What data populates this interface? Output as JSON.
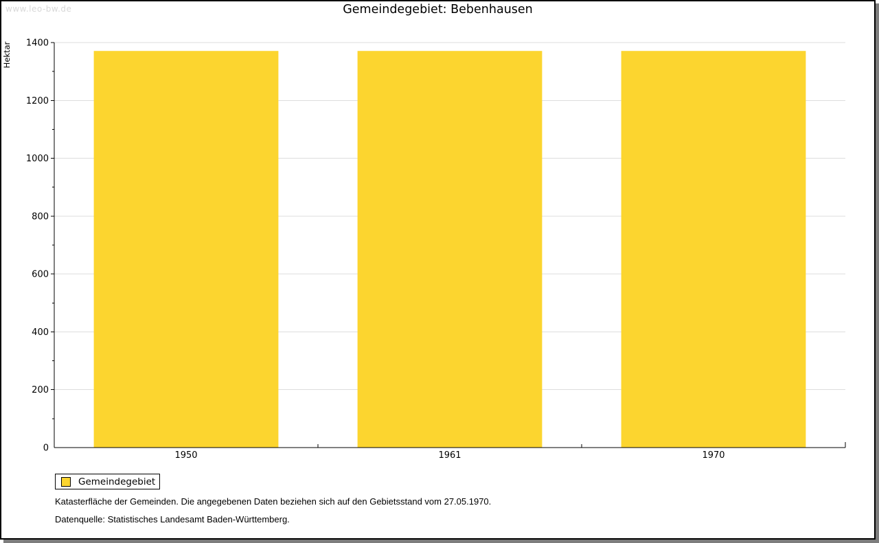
{
  "watermark": "www.leo-bw.de",
  "title": "Gemeindegebiet: Bebenhausen",
  "chart_data": {
    "type": "bar",
    "title": "Gemeindegebiet: Bebenhausen",
    "categories": [
      "1950",
      "1961",
      "1970"
    ],
    "values": [
      1371,
      1371,
      1371
    ],
    "series_name": "Gemeindegebiet",
    "xlabel": "",
    "ylabel": "Hektar",
    "ylim": [
      0,
      1400
    ],
    "ytick_step": 200,
    "minor_tick_step": 100,
    "grid": true,
    "legend_position": "bottom-left",
    "bar_color": "#FCD52F",
    "bar_width_fraction": 0.7
  },
  "legend": {
    "label": "Gemeindegebiet",
    "swatch_color": "#FCD52F"
  },
  "footer": {
    "line1": "Katasterfläche der Gemeinden. Die angegebenen Daten beziehen sich auf den Gebietsstand vom 27.05.1970.",
    "line2": "Datenquelle: Statistisches Landesamt Baden-Württemberg."
  },
  "colors": {
    "axis": "#000000",
    "gridline": "#dddddd",
    "tick_label": "#000000",
    "watermark": "#d8d8d8",
    "shadow": "#7d7d7d",
    "background": "#ffffff"
  }
}
